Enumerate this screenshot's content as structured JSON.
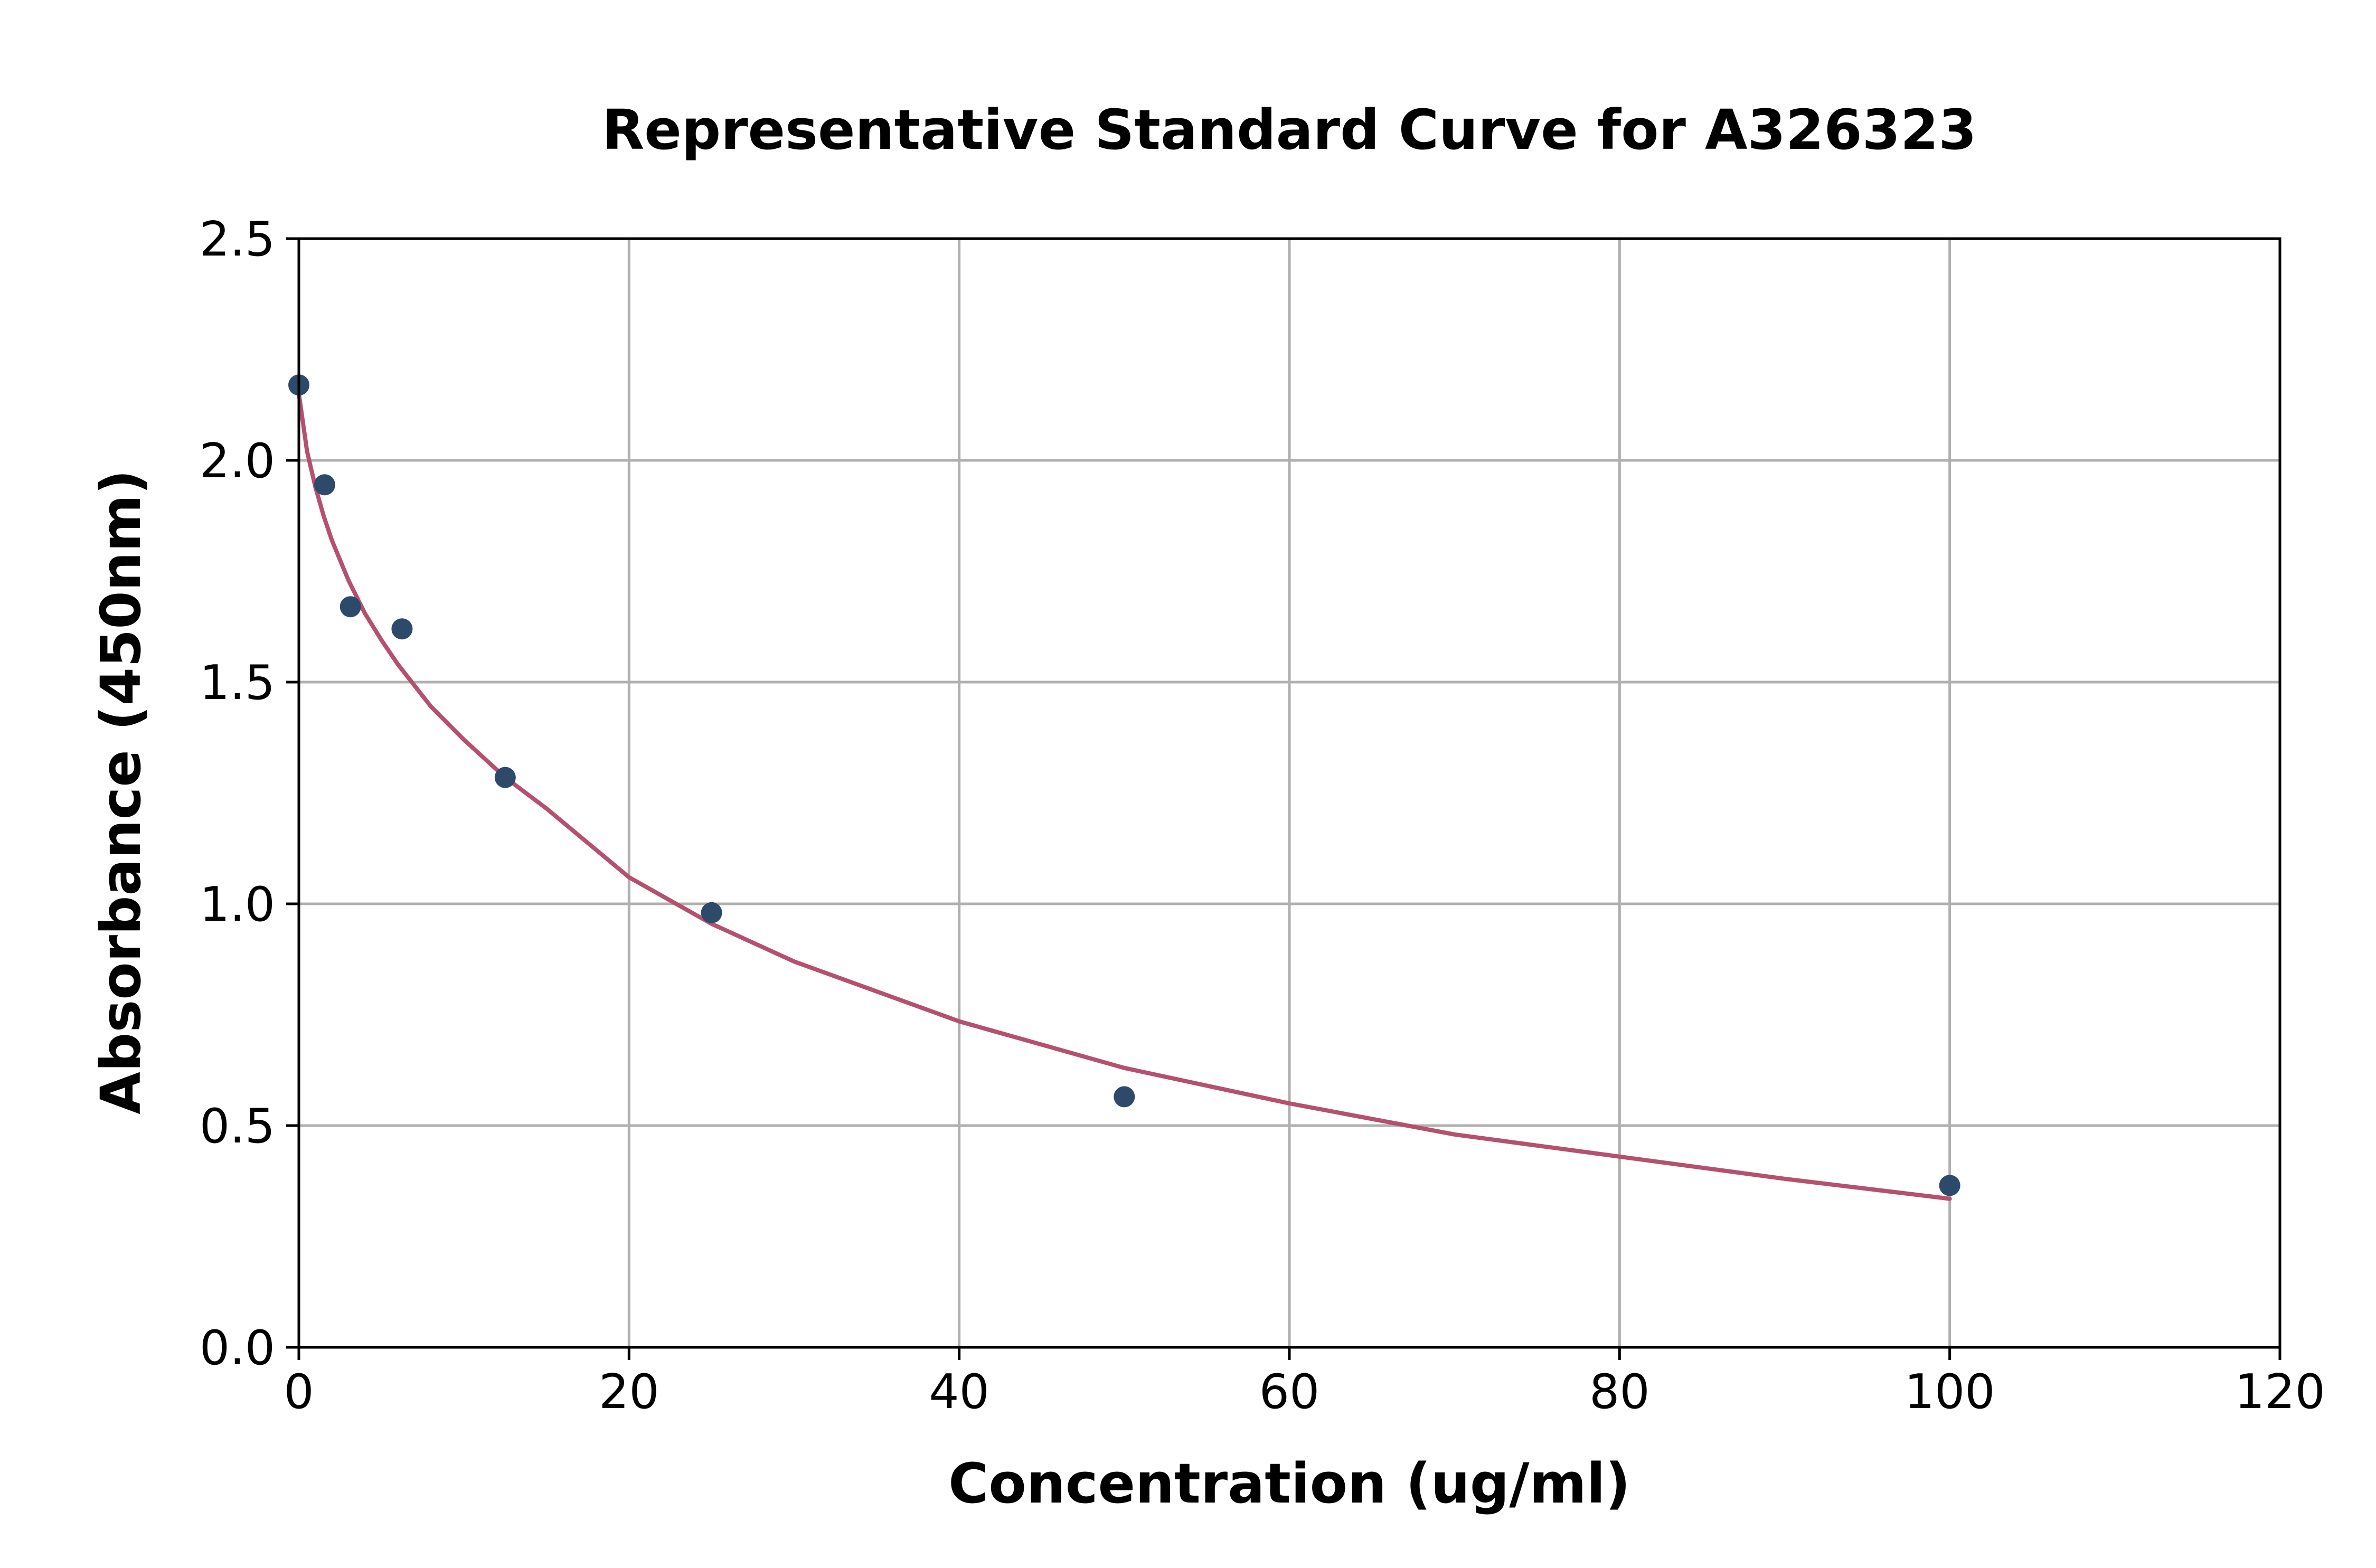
{
  "chart_data": {
    "type": "scatter",
    "title": "Representative Standard Curve for A326323",
    "xlabel": "Concentration (ug/ml)",
    "ylabel": "Absorbance (450nm)",
    "xlim": [
      0,
      120
    ],
    "ylim": [
      0,
      2.5
    ],
    "xticks": [
      0,
      20,
      40,
      60,
      80,
      100,
      120
    ],
    "xtick_labels": [
      "0",
      "20",
      "40",
      "60",
      "80",
      "100",
      "120"
    ],
    "yticks": [
      0.0,
      0.5,
      1.0,
      1.5,
      2.0,
      2.5
    ],
    "ytick_labels": [
      "0.0",
      "0.5",
      "1.0",
      "1.5",
      "2.0",
      "2.5"
    ],
    "grid": true,
    "series": [
      {
        "kind": "points",
        "color": "#2d4a6b",
        "x": [
          0,
          1.5625,
          3.125,
          6.25,
          12.5,
          25,
          50,
          100
        ],
        "y": [
          2.17,
          1.945,
          1.67,
          1.62,
          1.285,
          0.98,
          0.565,
          0.365
        ]
      },
      {
        "kind": "fit-curve",
        "color": "#b5506f",
        "x": [
          0,
          0.5,
          1,
          1.5,
          2,
          3,
          4,
          5,
          6,
          8,
          10,
          12.5,
          15,
          20,
          25,
          30,
          40,
          50,
          60,
          70,
          80,
          90,
          100
        ],
        "y": [
          2.15,
          2.02,
          1.94,
          1.875,
          1.82,
          1.73,
          1.655,
          1.595,
          1.54,
          1.445,
          1.37,
          1.285,
          1.215,
          1.06,
          0.955,
          0.87,
          0.735,
          0.63,
          0.55,
          0.48,
          0.43,
          0.38,
          0.335
        ]
      }
    ]
  },
  "colors": {
    "background": "#ffffff",
    "axis": "#000000",
    "grid": "#b0b0b0",
    "points": "#2d4a6b",
    "curve": "#b5506f"
  }
}
